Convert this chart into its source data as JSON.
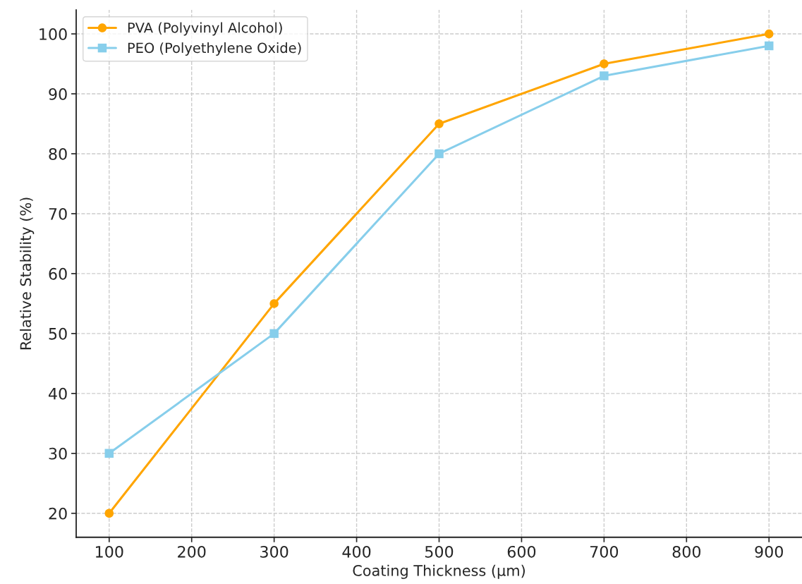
{
  "chart_data": {
    "type": "line",
    "xlabel": "Coating Thickness (µm)",
    "ylabel": "Relative Stability (%)",
    "x": [
      100,
      300,
      500,
      700,
      900
    ],
    "series": [
      {
        "name": "PVA (Polyvinyl Alcohol)",
        "color": "#ffa500",
        "marker": "circle",
        "values": [
          20,
          55,
          85,
          95,
          100
        ]
      },
      {
        "name": "PEO (Polyethylene Oxide)",
        "color": "#87ceeb",
        "marker": "square",
        "values": [
          30,
          50,
          80,
          93,
          98
        ]
      }
    ],
    "xlim": [
      60,
      940
    ],
    "xticks": [
      100,
      200,
      300,
      400,
      500,
      600,
      700,
      800,
      900
    ],
    "ylim": [
      16,
      104
    ],
    "yticks": [
      20,
      30,
      40,
      50,
      60,
      70,
      80,
      90,
      100
    ],
    "grid": true,
    "legend": "top left",
    "line_style": "solid"
  }
}
